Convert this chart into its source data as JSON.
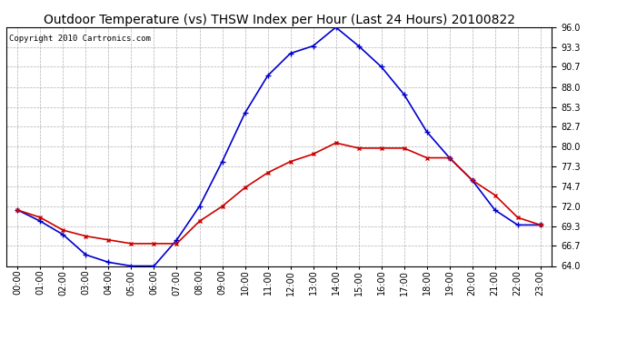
{
  "title": "Outdoor Temperature (vs) THSW Index per Hour (Last 24 Hours) 20100822",
  "copyright": "Copyright 2010 Cartronics.com",
  "hours": [
    "00:00",
    "01:00",
    "02:00",
    "03:00",
    "04:00",
    "05:00",
    "06:00",
    "07:00",
    "08:00",
    "09:00",
    "10:00",
    "11:00",
    "12:00",
    "13:00",
    "14:00",
    "15:00",
    "16:00",
    "17:00",
    "18:00",
    "19:00",
    "20:00",
    "21:00",
    "22:00",
    "23:00"
  ],
  "temp": [
    71.5,
    70.5,
    68.8,
    68.0,
    67.5,
    67.0,
    67.0,
    67.0,
    70.0,
    72.0,
    74.5,
    76.5,
    78.0,
    79.0,
    80.5,
    79.8,
    79.8,
    79.8,
    78.5,
    78.5,
    75.5,
    73.5,
    70.5,
    69.5
  ],
  "thsw": [
    71.5,
    70.0,
    68.2,
    65.5,
    64.5,
    64.0,
    64.0,
    67.5,
    72.0,
    78.0,
    84.5,
    89.5,
    92.5,
    93.5,
    96.0,
    93.5,
    90.7,
    87.0,
    82.0,
    78.5,
    75.5,
    71.5,
    69.5,
    69.5
  ],
  "temp_color": "#cc0000",
  "thsw_color": "#0000cc",
  "bg_color": "#ffffff",
  "grid_color": "#b0b0b0",
  "ymin": 64.0,
  "ymax": 96.0,
  "yticks": [
    64.0,
    66.7,
    69.3,
    72.0,
    74.7,
    77.3,
    80.0,
    82.7,
    85.3,
    88.0,
    90.7,
    93.3,
    96.0
  ],
  "title_fontsize": 10,
  "copyright_fontsize": 6.5,
  "tick_fontsize": 7,
  "ylabel_fontsize": 7
}
